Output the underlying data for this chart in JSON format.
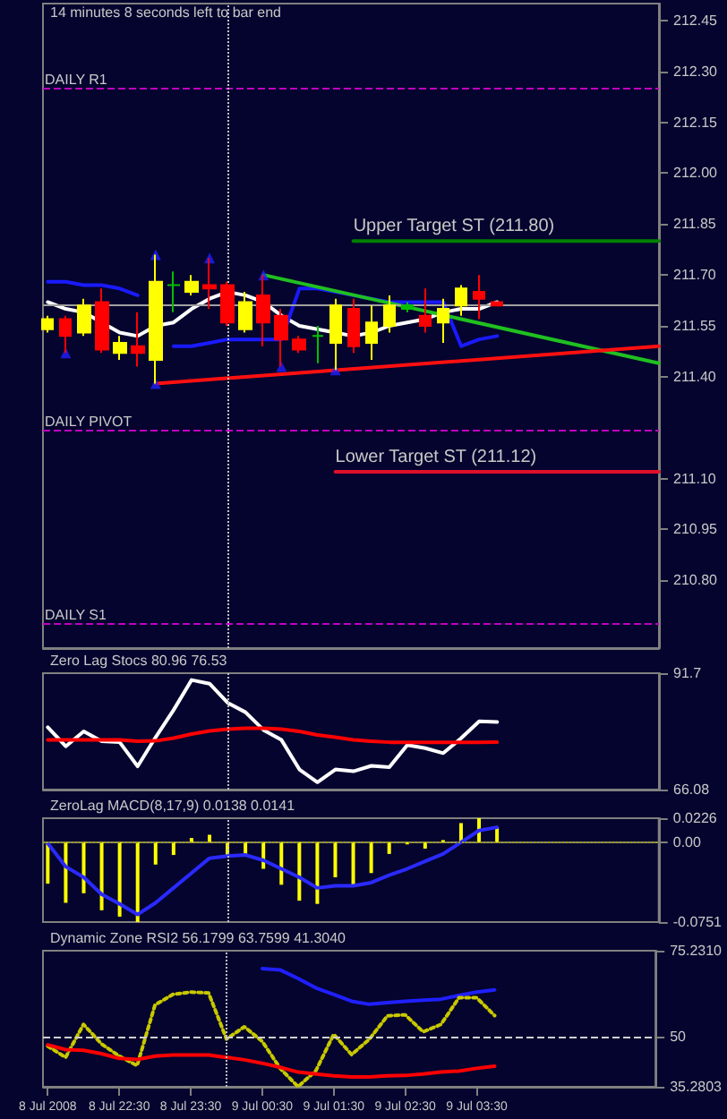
{
  "chart_data": [
    {
      "type": "candlestick",
      "annotations": [
        "14 minutes 8 seconds left to bar end",
        {
          "text": "Upper Target ST (211.80)",
          "x": "2008-07-09T01:45",
          "y": 211.8
        },
        {
          "text": "Lower Target ST (211.12)",
          "x": "2008-07-09T01:30",
          "y": 211.12
        }
      ],
      "x": [
        "2008-07-08T21:30",
        "2008-07-08T21:45",
        "2008-07-08T22:00",
        "2008-07-08T22:15",
        "2008-07-08T22:30",
        "2008-07-08T22:45",
        "2008-07-08T23:00",
        "2008-07-08T23:15",
        "2008-07-08T23:30",
        "2008-07-08T23:45",
        "2008-07-09T00:00",
        "2008-07-09T00:15",
        "2008-07-09T00:30",
        "2008-07-09T00:45",
        "2008-07-09T01:00",
        "2008-07-09T01:15",
        "2008-07-09T01:30",
        "2008-07-09T01:45",
        "2008-07-09T02:00",
        "2008-07-09T02:15",
        "2008-07-09T02:30",
        "2008-07-09T02:45",
        "2008-07-09T03:00",
        "2008-07-09T03:15",
        "2008-07-09T03:30",
        "2008-07-09T03:45"
      ],
      "ohlc": [
        [
          211.54,
          211.58,
          211.53,
          211.57
        ],
        [
          211.57,
          211.58,
          211.47,
          211.52
        ],
        [
          211.53,
          211.63,
          211.52,
          211.61
        ],
        [
          211.62,
          211.66,
          211.47,
          211.48
        ],
        [
          211.47,
          211.52,
          211.45,
          211.5
        ],
        [
          211.49,
          211.59,
          211.43,
          211.47
        ],
        [
          211.45,
          211.76,
          211.38,
          211.68
        ],
        [
          211.67,
          211.71,
          211.59,
          211.67
        ],
        [
          211.65,
          211.7,
          211.64,
          211.68
        ],
        [
          211.67,
          211.75,
          211.6,
          211.66
        ],
        [
          211.67,
          211.68,
          211.55,
          211.56
        ],
        [
          211.54,
          211.65,
          211.53,
          211.62
        ],
        [
          211.64,
          211.7,
          211.49,
          211.56
        ],
        [
          211.58,
          211.6,
          211.43,
          211.51
        ],
        [
          211.51,
          211.52,
          211.47,
          211.48
        ],
        [
          211.52,
          211.55,
          211.44,
          211.52
        ],
        [
          211.5,
          211.63,
          211.42,
          211.61
        ],
        [
          211.6,
          211.63,
          211.47,
          211.49
        ],
        [
          211.5,
          211.61,
          211.45,
          211.56
        ],
        [
          211.55,
          211.64,
          211.53,
          211.61
        ],
        [
          211.6,
          211.62,
          211.59,
          211.61
        ],
        [
          211.58,
          211.66,
          211.53,
          211.55
        ],
        [
          211.56,
          211.63,
          211.5,
          211.6
        ],
        [
          211.61,
          211.67,
          211.58,
          211.66
        ],
        [
          211.65,
          211.7,
          211.57,
          211.63
        ],
        [
          211.62,
          211.62,
          211.61,
          211.61
        ]
      ],
      "colors": [
        "#ffff00",
        "#ff0000",
        "#ffff00",
        "#ff0000",
        "#ffff00",
        "#ff0000",
        "#ffff00",
        "#00c000",
        "#ffff00",
        "#ff0000",
        "#ff0000",
        "#ffff00",
        "#ff0000",
        "#ff0000",
        "#ff0000",
        "#00c000",
        "#ffff00",
        "#ff0000",
        "#ffff00",
        "#ffff00",
        "#00c000",
        "#ff0000",
        "#ffff00",
        "#ffff00",
        "#ff0000",
        "#ff0000"
      ],
      "series": [
        {
          "type": "line",
          "color": "#ffffff",
          "values": [
            211.62,
            211.6,
            211.59,
            211.56,
            211.53,
            211.52,
            211.55,
            211.56,
            211.6,
            211.63,
            211.65,
            211.64,
            211.62,
            211.58,
            211.55,
            211.54,
            211.53,
            211.52,
            211.53,
            211.55,
            211.56,
            211.57,
            211.59,
            211.6,
            211.6,
            211.62
          ]
        },
        {
          "type": "line",
          "color": "#1a1aff",
          "values": [
            211.68,
            211.68,
            211.67,
            211.67,
            211.66,
            211.64,
            null,
            211.49,
            211.49,
            211.5,
            211.51,
            211.51,
            211.51,
            211.51,
            211.66,
            211.66,
            211.65,
            211.64,
            211.63,
            211.62,
            211.62,
            211.62,
            211.62,
            211.49,
            211.51,
            211.52
          ]
        },
        {
          "type": "line",
          "color": "#20c020",
          "x": [
            "2008-07-09T00:30",
            "2008-07-09T06:00"
          ],
          "values": [
            211.7,
            211.44
          ]
        },
        {
          "type": "line",
          "color": "#ff1010",
          "x": [
            "2008-07-08T23:00",
            "2008-07-09T06:00"
          ],
          "values": [
            211.38,
            211.49
          ]
        },
        {
          "type": "line",
          "color": "#008000",
          "x": [
            "2008-07-09T01:45",
            "2008-07-09T06:00"
          ],
          "values": [
            211.8,
            211.8
          ]
        },
        {
          "type": "line",
          "color": "#e0102a",
          "x": [
            "2008-07-09T01:30",
            "2008-07-09T06:00"
          ],
          "values": [
            211.12,
            211.12
          ]
        },
        {
          "type": "scatter",
          "color": "#2020ff",
          "marker": "triangle",
          "x": [
            "2008-07-08T21:45",
            "2008-07-08T23:00",
            "2008-07-08T23:00",
            "2008-07-08T23:45",
            "2008-07-09T00:30",
            "2008-07-09T00:45",
            "2008-07-09T01:30"
          ],
          "values": [
            211.47,
            211.76,
            211.38,
            211.75,
            211.7,
            211.43,
            211.42
          ]
        }
      ],
      "ref_lines": [
        {
          "axis": "y",
          "value": 212.25,
          "label": "DAILY R1",
          "color": "#c000c0",
          "line_style": "dashed"
        },
        {
          "axis": "y",
          "value": 211.24,
          "label": "DAILY PIVOT",
          "color": "#c000c0",
          "line_style": "dashed"
        },
        {
          "axis": "y",
          "value": 210.67,
          "label": "DAILY S1",
          "color": "#c000c0",
          "line_style": "dashed"
        },
        {
          "axis": "y",
          "value": 211.61,
          "color": "#a0a0a0",
          "line_style": "solid"
        },
        {
          "axis": "x",
          "value": "2008-07-09T00:00",
          "color": "#c0c0c0",
          "line_style": "dotted"
        }
      ],
      "xlim": [
        "2008-07-08T21:26",
        "2008-07-09T06:00"
      ],
      "ylim": [
        210.6,
        212.5
      ],
      "yticks": [
        {
          "value": 212.45,
          "label": "212.45"
        },
        {
          "value": 212.3,
          "label": "212.30"
        },
        {
          "value": 212.15,
          "label": "212.15"
        },
        {
          "value": 212,
          "label": "212.00"
        },
        {
          "value": 211.85,
          "label": "211.85"
        },
        {
          "value": 211.7,
          "label": "211.70"
        },
        {
          "value": 211.55,
          "label": "211.55"
        },
        {
          "value": 211.4,
          "label": "211.40"
        },
        {
          "value": 211.1,
          "label": "211.10"
        },
        {
          "value": 210.95,
          "label": "210.95"
        },
        {
          "value": 210.8,
          "label": "210.80"
        }
      ],
      "tick_labels": "y"
    },
    {
      "type": "line",
      "title": "Zero Lag Stocs 80.96 76.53",
      "x": [
        "2008-07-08T21:30",
        "2008-07-08T21:45",
        "2008-07-08T22:00",
        "2008-07-08T22:15",
        "2008-07-08T22:30",
        "2008-07-08T22:45",
        "2008-07-08T23:00",
        "2008-07-08T23:15",
        "2008-07-08T23:30",
        "2008-07-08T23:45",
        "2008-07-09T00:00",
        "2008-07-09T00:15",
        "2008-07-09T00:30",
        "2008-07-09T00:45",
        "2008-07-09T01:00",
        "2008-07-09T01:15",
        "2008-07-09T01:30",
        "2008-07-09T01:45",
        "2008-07-09T02:00",
        "2008-07-09T02:15",
        "2008-07-09T02:30",
        "2008-07-09T02:45",
        "2008-07-09T03:00",
        "2008-07-09T03:15",
        "2008-07-09T03:30",
        "2008-07-09T03:45"
      ],
      "series": [
        {
          "color": "#ffffff",
          "values": [
            79.8,
            75.6,
            78.9,
            76.7,
            76.5,
            71.2,
            77.6,
            83.6,
            90.2,
            89.4,
            85.2,
            83.1,
            79.2,
            77.0,
            70.5,
            67.7,
            70.5,
            70.1,
            71.3,
            71.0,
            75.9,
            75.2,
            74.1,
            77.4,
            81.1,
            80.96
          ]
        },
        {
          "color": "#ff0000",
          "values": [
            77.0,
            77.0,
            77.0,
            77.0,
            77.0,
            76.7,
            76.8,
            77.4,
            78.3,
            79.0,
            79.4,
            79.6,
            79.6,
            79.4,
            78.9,
            78.1,
            77.6,
            77.0,
            76.7,
            76.5,
            76.5,
            76.5,
            76.5,
            76.5,
            76.5,
            76.53
          ]
        }
      ],
      "ref_lines": [
        {
          "axis": "x",
          "value": "2008-07-09T00:00",
          "color": "#c0c0c0",
          "line_style": "dotted"
        }
      ],
      "xlim": [
        "2008-07-08T21:26",
        "2008-07-09T06:00"
      ],
      "ylim": [
        66.08,
        91.7
      ],
      "yticks": [
        91.7,
        66.08
      ],
      "tick_labels": "y"
    },
    {
      "type": "bar",
      "title": "ZeroLag MACD(8,17,9) 0.0138 0.0141",
      "x": [
        "2008-07-08T21:30",
        "2008-07-08T21:45",
        "2008-07-08T22:00",
        "2008-07-08T22:15",
        "2008-07-08T22:30",
        "2008-07-08T22:45",
        "2008-07-08T23:00",
        "2008-07-08T23:15",
        "2008-07-08T23:30",
        "2008-07-08T23:45",
        "2008-07-09T00:00",
        "2008-07-09T00:15",
        "2008-07-09T00:30",
        "2008-07-09T00:45",
        "2008-07-09T01:00",
        "2008-07-09T01:15",
        "2008-07-09T01:30",
        "2008-07-09T01:45",
        "2008-07-09T02:00",
        "2008-07-09T02:15",
        "2008-07-09T02:30",
        "2008-07-09T02:45",
        "2008-07-09T03:00",
        "2008-07-09T03:15",
        "2008-07-09T03:30",
        "2008-07-09T03:45"
      ],
      "series": [
        {
          "type": "bar",
          "color": "#ffff00",
          "values": [
            -0.039,
            -0.057,
            -0.048,
            -0.064,
            -0.07,
            -0.0751,
            -0.021,
            -0.012,
            0.004,
            0.007,
            -0.013,
            -0.011,
            -0.025,
            -0.04,
            -0.055,
            -0.058,
            -0.033,
            -0.04,
            -0.029,
            -0.011,
            -0.002,
            -0.006,
            0.002,
            0.018,
            0.0226,
            0.0138
          ]
        },
        {
          "type": "line",
          "color": "#2a2aff",
          "values": [
            -0.001,
            -0.023,
            -0.033,
            -0.049,
            -0.058,
            -0.068,
            -0.057,
            -0.043,
            -0.029,
            -0.015,
            -0.013,
            -0.012,
            -0.017,
            -0.025,
            -0.033,
            -0.043,
            -0.041,
            -0.041,
            -0.038,
            -0.031,
            -0.025,
            -0.018,
            -0.011,
            0.0,
            0.011,
            0.0141
          ]
        }
      ],
      "ref_lines": [
        {
          "axis": "y",
          "value": 0,
          "color": "#a0a000",
          "line_style": "dotted"
        },
        {
          "axis": "x",
          "value": "2008-07-09T00:00",
          "color": "#c0c0c0",
          "line_style": "dotted"
        }
      ],
      "xlim": [
        "2008-07-08T21:26",
        "2008-07-09T06:00"
      ],
      "ylim": [
        -0.0751,
        0.0226
      ],
      "yticks": [
        0.0226,
        {
          "value": 0,
          "label": "0.00"
        },
        -0.0751
      ],
      "tick_labels": "y"
    },
    {
      "type": "line",
      "title": "Dynamic Zone RSI2 56.1799 63.7599 41.3040",
      "x": [
        "2008-07-08T21:30",
        "2008-07-08T21:45",
        "2008-07-08T22:00",
        "2008-07-08T22:15",
        "2008-07-08T22:30",
        "2008-07-08T22:45",
        "2008-07-08T23:00",
        "2008-07-08T23:15",
        "2008-07-08T23:30",
        "2008-07-08T23:45",
        "2008-07-09T00:00",
        "2008-07-09T00:15",
        "2008-07-09T00:30",
        "2008-07-09T00:45",
        "2008-07-09T01:00",
        "2008-07-09T01:15",
        "2008-07-09T01:30",
        "2008-07-09T01:45",
        "2008-07-09T02:00",
        "2008-07-09T02:15",
        "2008-07-09T02:30",
        "2008-07-09T02:45",
        "2008-07-09T03:00",
        "2008-07-09T03:15",
        "2008-07-09T03:30",
        "2008-07-09T03:45"
      ],
      "series": [
        {
          "color": "#2020ff",
          "values": [
            null,
            null,
            null,
            null,
            null,
            null,
            null,
            null,
            null,
            null,
            null,
            null,
            70.0,
            69.6,
            67.1,
            64.3,
            62.4,
            60.4,
            59.5,
            60.0,
            60.4,
            60.7,
            61.0,
            62.1,
            63.1,
            63.76
          ]
        },
        {
          "color": "#c8c800",
          "line_style": "dotted",
          "values": [
            47.2,
            43.9,
            53.6,
            47.9,
            44.3,
            41.5,
            59.3,
            62.4,
            63.1,
            62.8,
            49.3,
            52.9,
            48.6,
            40.7,
            35.3,
            40.0,
            50.7,
            44.7,
            49.3,
            56.1,
            56.4,
            51.4,
            53.6,
            61.4,
            61.4,
            56.18
          ]
        },
        {
          "color": "#ff0000",
          "values": [
            47.6,
            46.2,
            46.0,
            45.0,
            43.6,
            43.3,
            44.3,
            44.6,
            44.6,
            44.6,
            43.9,
            43.2,
            42.2,
            41.0,
            39.6,
            39.0,
            38.5,
            38.2,
            38.2,
            38.5,
            38.6,
            39.0,
            39.6,
            39.9,
            40.7,
            41.3
          ]
        }
      ],
      "ref_lines": [
        {
          "axis": "y",
          "value": 50,
          "color": "#d0d0d0",
          "line_style": "dashed"
        },
        {
          "axis": "x",
          "value": "2008-07-09T00:00",
          "color": "#c0c0c0",
          "line_style": "dotted"
        }
      ],
      "xlim": [
        "2008-07-08T21:26",
        "2008-07-09T06:00"
      ],
      "ylim": [
        35.2803,
        75.231
      ],
      "yticks": [
        {
          "value": 75.231,
          "label": "75.2310"
        },
        50,
        35.2803
      ],
      "xticks": [
        {
          "value": "2008-07-08T21:30",
          "label": "8 Jul 2008"
        },
        {
          "value": "2008-07-08T22:30",
          "label": "8 Jul 22:30"
        },
        {
          "value": "2008-07-08T23:30",
          "label": "8 Jul 23:30"
        },
        {
          "value": "2008-07-09T00:30",
          "label": "9 Jul 00:30"
        },
        {
          "value": "2008-07-09T01:30",
          "label": "9 Jul 01:30"
        },
        {
          "value": "2008-07-09T02:30",
          "label": "9 Jul 02:30"
        },
        {
          "value": "2008-07-09T03:30",
          "label": "9 Jul 03:30"
        }
      ]
    }
  ]
}
